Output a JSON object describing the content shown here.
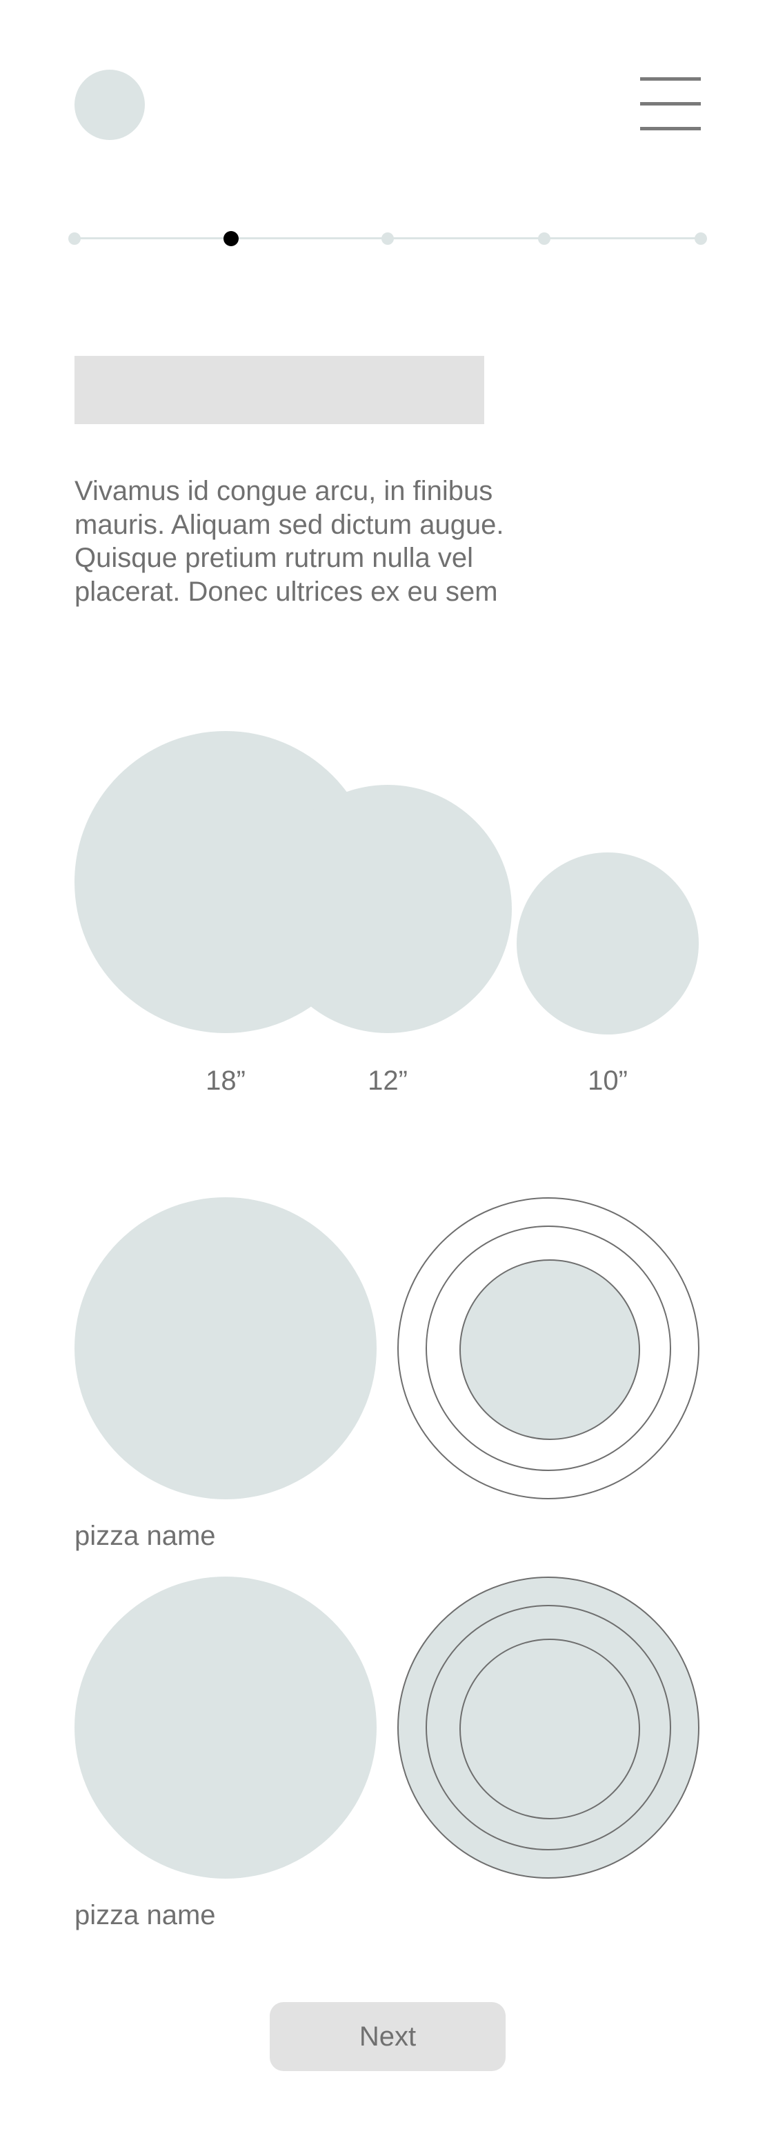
{
  "colors": {
    "placeholder_fill": "#dce4e4",
    "gray_block": "#e2e2e2",
    "text": "#707070",
    "outline": "#6e6e6e",
    "active_dot": "#000000"
  },
  "header": {
    "avatar_icon": "avatar-placeholder",
    "menu_icon": "hamburger-menu-icon"
  },
  "stepper": {
    "total_steps": 5,
    "current_step": 2
  },
  "intro": {
    "text": "Vivamus id congue arcu, in finibus mauris. Aliquam sed dictum augue. Quisque pretium rutrum nulla vel placerat. Donec ultrices ex eu sem"
  },
  "sizes": {
    "labels": [
      "18”",
      "12”",
      "10”"
    ]
  },
  "pizzas": [
    {
      "name": "pizza name"
    },
    {
      "name": "pizza name"
    }
  ],
  "footer": {
    "next_label": "Next"
  }
}
